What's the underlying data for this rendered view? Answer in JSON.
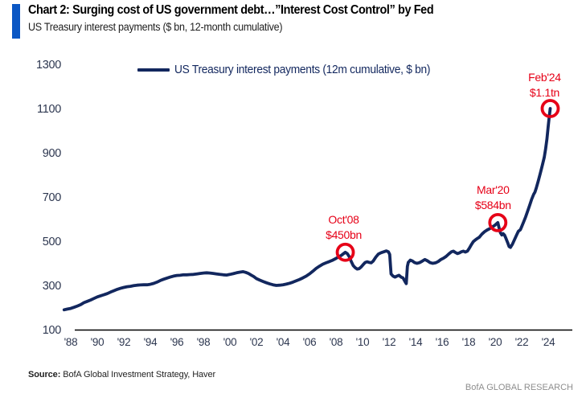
{
  "header": {
    "title": "Chart 2: Surging cost of US government debt…”Interest Cost Control” by Fed",
    "subtitle": "US Treasury interest payments ($ bn, 12-month cumulative)"
  },
  "legend": {
    "label": "US Treasury interest payments (12m cumulative, $ bn)"
  },
  "footer": {
    "source_label": "Source:",
    "source_text": " BofA Global Investment Strategy, Haver",
    "branding": "BofA GLOBAL RESEARCH"
  },
  "colors": {
    "line": "#12275e",
    "accent_bar": "#0b57c4",
    "annotation": "#e60017",
    "axis": "#000000",
    "tick_label": "#2d3750",
    "branding": "#8e8e8e"
  },
  "chart_data": {
    "type": "line",
    "title": "US Treasury interest payments ($ bn, 12-month cumulative)",
    "xlabel": "",
    "ylabel": "$ bn",
    "xlim": [
      1987.5,
      2025.5
    ],
    "ylim": [
      100,
      1300
    ],
    "grid": false,
    "legend_position": "top",
    "y_ticks": [
      1300,
      1100,
      900,
      700,
      500,
      300,
      100
    ],
    "x_ticks": {
      "years": [
        1988,
        1990,
        1992,
        1994,
        1996,
        1998,
        2000,
        2002,
        2004,
        2006,
        2008,
        2010,
        2012,
        2014,
        2016,
        2018,
        2020,
        2022,
        2024
      ],
      "labels": [
        "'88",
        "'90",
        "'92",
        "'94",
        "'96",
        "'98",
        "'00",
        "'02",
        "'04",
        "'06",
        "'08",
        "'10",
        "'12",
        "'14",
        "'16",
        "'18",
        "'20",
        "'22",
        "'24"
      ]
    },
    "series": [
      {
        "name": "US Treasury interest payments (12m cumulative, $ bn)",
        "points": [
          [
            1987.5,
            190
          ],
          [
            1987.75,
            193
          ],
          [
            1988.0,
            196
          ],
          [
            1988.25,
            201
          ],
          [
            1988.5,
            207
          ],
          [
            1988.75,
            213
          ],
          [
            1989.0,
            222
          ],
          [
            1989.25,
            228
          ],
          [
            1989.5,
            234
          ],
          [
            1989.75,
            241
          ],
          [
            1990.0,
            248
          ],
          [
            1990.25,
            253
          ],
          [
            1990.5,
            258
          ],
          [
            1990.75,
            263
          ],
          [
            1991.0,
            270
          ],
          [
            1991.25,
            276
          ],
          [
            1991.5,
            282
          ],
          [
            1991.75,
            287
          ],
          [
            1992.0,
            291
          ],
          [
            1992.25,
            294
          ],
          [
            1992.5,
            296
          ],
          [
            1992.75,
            299
          ],
          [
            1993.0,
            301
          ],
          [
            1993.25,
            302
          ],
          [
            1993.5,
            303
          ],
          [
            1993.75,
            303
          ],
          [
            1994.0,
            305
          ],
          [
            1994.25,
            309
          ],
          [
            1994.5,
            315
          ],
          [
            1994.75,
            322
          ],
          [
            1995.0,
            328
          ],
          [
            1995.25,
            333
          ],
          [
            1995.5,
            338
          ],
          [
            1995.75,
            342
          ],
          [
            1996.0,
            345
          ],
          [
            1996.25,
            346
          ],
          [
            1996.5,
            348
          ],
          [
            1996.75,
            348
          ],
          [
            1997.0,
            349
          ],
          [
            1997.25,
            350
          ],
          [
            1997.5,
            352
          ],
          [
            1997.75,
            354
          ],
          [
            1998.0,
            356
          ],
          [
            1998.25,
            357
          ],
          [
            1998.5,
            356
          ],
          [
            1998.75,
            354
          ],
          [
            1999.0,
            352
          ],
          [
            1999.25,
            350
          ],
          [
            1999.5,
            348
          ],
          [
            1999.75,
            347
          ],
          [
            2000.0,
            350
          ],
          [
            2000.25,
            353
          ],
          [
            2000.5,
            357
          ],
          [
            2000.75,
            360
          ],
          [
            2001.0,
            362
          ],
          [
            2001.2,
            359
          ],
          [
            2001.4,
            354
          ],
          [
            2001.6,
            347
          ],
          [
            2001.8,
            340
          ],
          [
            2002.0,
            331
          ],
          [
            2002.25,
            324
          ],
          [
            2002.5,
            318
          ],
          [
            2002.75,
            312
          ],
          [
            2003.0,
            307
          ],
          [
            2003.25,
            303
          ],
          [
            2003.5,
            300
          ],
          [
            2003.75,
            301
          ],
          [
            2004.0,
            303
          ],
          [
            2004.25,
            306
          ],
          [
            2004.5,
            310
          ],
          [
            2004.75,
            315
          ],
          [
            2005.0,
            321
          ],
          [
            2005.25,
            327
          ],
          [
            2005.5,
            334
          ],
          [
            2005.75,
            342
          ],
          [
            2006.0,
            352
          ],
          [
            2006.25,
            364
          ],
          [
            2006.5,
            377
          ],
          [
            2006.75,
            387
          ],
          [
            2007.0,
            396
          ],
          [
            2007.25,
            402
          ],
          [
            2007.5,
            408
          ],
          [
            2007.75,
            414
          ],
          [
            2008.0,
            422
          ],
          [
            2008.2,
            429
          ],
          [
            2008.4,
            436
          ],
          [
            2008.55,
            443
          ],
          [
            2008.7,
            450
          ],
          [
            2008.85,
            444
          ],
          [
            2009.0,
            430
          ],
          [
            2009.15,
            408
          ],
          [
            2009.3,
            390
          ],
          [
            2009.45,
            380
          ],
          [
            2009.6,
            374
          ],
          [
            2009.75,
            376
          ],
          [
            2009.9,
            384
          ],
          [
            2010.05,
            394
          ],
          [
            2010.2,
            404
          ],
          [
            2010.35,
            407
          ],
          [
            2010.5,
            404
          ],
          [
            2010.65,
            402
          ],
          [
            2010.8,
            410
          ],
          [
            2011.0,
            428
          ],
          [
            2011.2,
            442
          ],
          [
            2011.4,
            448
          ],
          [
            2011.6,
            452
          ],
          [
            2011.8,
            456
          ],
          [
            2011.95,
            452
          ],
          [
            2012.05,
            440
          ],
          [
            2012.15,
            352
          ],
          [
            2012.3,
            342
          ],
          [
            2012.45,
            338
          ],
          [
            2012.6,
            342
          ],
          [
            2012.75,
            346
          ],
          [
            2012.9,
            338
          ],
          [
            2013.05,
            334
          ],
          [
            2013.2,
            318
          ],
          [
            2013.3,
            308
          ],
          [
            2013.38,
            386
          ],
          [
            2013.45,
            404
          ],
          [
            2013.6,
            414
          ],
          [
            2013.75,
            411
          ],
          [
            2013.9,
            404
          ],
          [
            2014.1,
            400
          ],
          [
            2014.3,
            403
          ],
          [
            2014.5,
            410
          ],
          [
            2014.7,
            417
          ],
          [
            2014.9,
            411
          ],
          [
            2015.1,
            403
          ],
          [
            2015.3,
            400
          ],
          [
            2015.5,
            402
          ],
          [
            2015.7,
            408
          ],
          [
            2015.9,
            417
          ],
          [
            2016.1,
            423
          ],
          [
            2016.3,
            431
          ],
          [
            2016.5,
            442
          ],
          [
            2016.7,
            452
          ],
          [
            2016.85,
            455
          ],
          [
            2017.0,
            449
          ],
          [
            2017.15,
            444
          ],
          [
            2017.3,
            447
          ],
          [
            2017.45,
            452
          ],
          [
            2017.6,
            455
          ],
          [
            2017.75,
            451
          ],
          [
            2017.9,
            455
          ],
          [
            2018.05,
            468
          ],
          [
            2018.2,
            484
          ],
          [
            2018.35,
            498
          ],
          [
            2018.5,
            506
          ],
          [
            2018.65,
            512
          ],
          [
            2018.8,
            518
          ],
          [
            2019.0,
            532
          ],
          [
            2019.2,
            543
          ],
          [
            2019.4,
            551
          ],
          [
            2019.6,
            557
          ],
          [
            2019.8,
            565
          ],
          [
            2019.95,
            571
          ],
          [
            2020.05,
            576
          ],
          [
            2020.2,
            584
          ],
          [
            2020.3,
            560
          ],
          [
            2020.4,
            538
          ],
          [
            2020.5,
            528
          ],
          [
            2020.6,
            534
          ],
          [
            2020.7,
            528
          ],
          [
            2020.8,
            515
          ],
          [
            2020.95,
            492
          ],
          [
            2021.05,
            476
          ],
          [
            2021.15,
            472
          ],
          [
            2021.3,
            486
          ],
          [
            2021.45,
            506
          ],
          [
            2021.6,
            526
          ],
          [
            2021.75,
            545
          ],
          [
            2021.9,
            552
          ],
          [
            2022.0,
            566
          ],
          [
            2022.15,
            588
          ],
          [
            2022.3,
            610
          ],
          [
            2022.45,
            636
          ],
          [
            2022.6,
            662
          ],
          [
            2022.75,
            690
          ],
          [
            2022.9,
            712
          ],
          [
            2023.0,
            722
          ],
          [
            2023.1,
            740
          ],
          [
            2023.25,
            772
          ],
          [
            2023.4,
            806
          ],
          [
            2023.55,
            842
          ],
          [
            2023.7,
            880
          ],
          [
            2023.8,
            916
          ],
          [
            2023.9,
            962
          ],
          [
            2024.0,
            1020
          ],
          [
            2024.08,
            1064
          ],
          [
            2024.15,
            1100
          ]
        ]
      }
    ],
    "annotations": [
      {
        "point_label": "Oct'08",
        "value_label": "$450bn",
        "year": 2008.7,
        "value": 450,
        "dx": -2,
        "dy1": -36,
        "dy2": -17
      },
      {
        "point_label": "Mar'20",
        "value_label": "$584bn",
        "year": 2020.2,
        "value": 584,
        "dx": -6,
        "dy1": -36,
        "dy2": -17
      },
      {
        "point_label": "Feb'24",
        "value_label": "$1.1tn",
        "year": 2024.15,
        "value": 1100,
        "dx": -7,
        "dy1": -34,
        "dy2": -15
      }
    ]
  }
}
